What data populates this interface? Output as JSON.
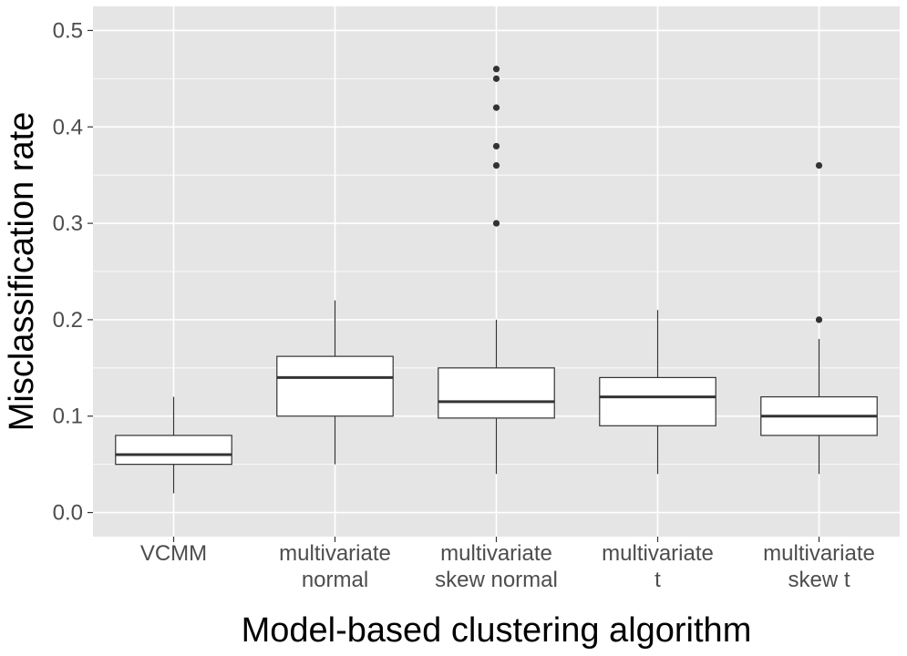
{
  "chart_data": {
    "type": "boxplot",
    "xlabel": "Model-based clustering algorithm",
    "ylabel": "Misclassification rate",
    "ylim": [
      -0.025,
      0.525
    ],
    "yticks": [
      0.0,
      0.1,
      0.2,
      0.3,
      0.4,
      0.5
    ],
    "ytick_labels": [
      "0.0",
      "0.1",
      "0.2",
      "0.3",
      "0.4",
      "0.5"
    ],
    "grid": true,
    "colors": {
      "panel": "#e5e5e5",
      "grid": "#ffffff",
      "box_fill": "#ffffff",
      "box_stroke": "#333333",
      "axis_text": "#4d4d4d"
    },
    "categories": [
      {
        "label_lines": [
          "VCMM"
        ],
        "whisker_low": 0.02,
        "q1": 0.05,
        "median": 0.06,
        "q3": 0.08,
        "whisker_high": 0.12,
        "outliers": []
      },
      {
        "label_lines": [
          "multivariate",
          "normal"
        ],
        "whisker_low": 0.05,
        "q1": 0.1,
        "median": 0.14,
        "q3": 0.162,
        "whisker_high": 0.22,
        "outliers": []
      },
      {
        "label_lines": [
          "multivariate",
          "skew normal"
        ],
        "whisker_low": 0.04,
        "q1": 0.098,
        "median": 0.115,
        "q3": 0.15,
        "whisker_high": 0.2,
        "outliers": [
          0.3,
          0.36,
          0.38,
          0.42,
          0.45,
          0.46
        ]
      },
      {
        "label_lines": [
          "multivariate",
          "t"
        ],
        "whisker_low": 0.04,
        "q1": 0.09,
        "median": 0.12,
        "q3": 0.14,
        "whisker_high": 0.21,
        "outliers": []
      },
      {
        "label_lines": [
          "multivariate",
          "skew t"
        ],
        "whisker_low": 0.04,
        "q1": 0.08,
        "median": 0.1,
        "q3": 0.12,
        "whisker_high": 0.18,
        "outliers": [
          0.2,
          0.36
        ]
      }
    ]
  }
}
